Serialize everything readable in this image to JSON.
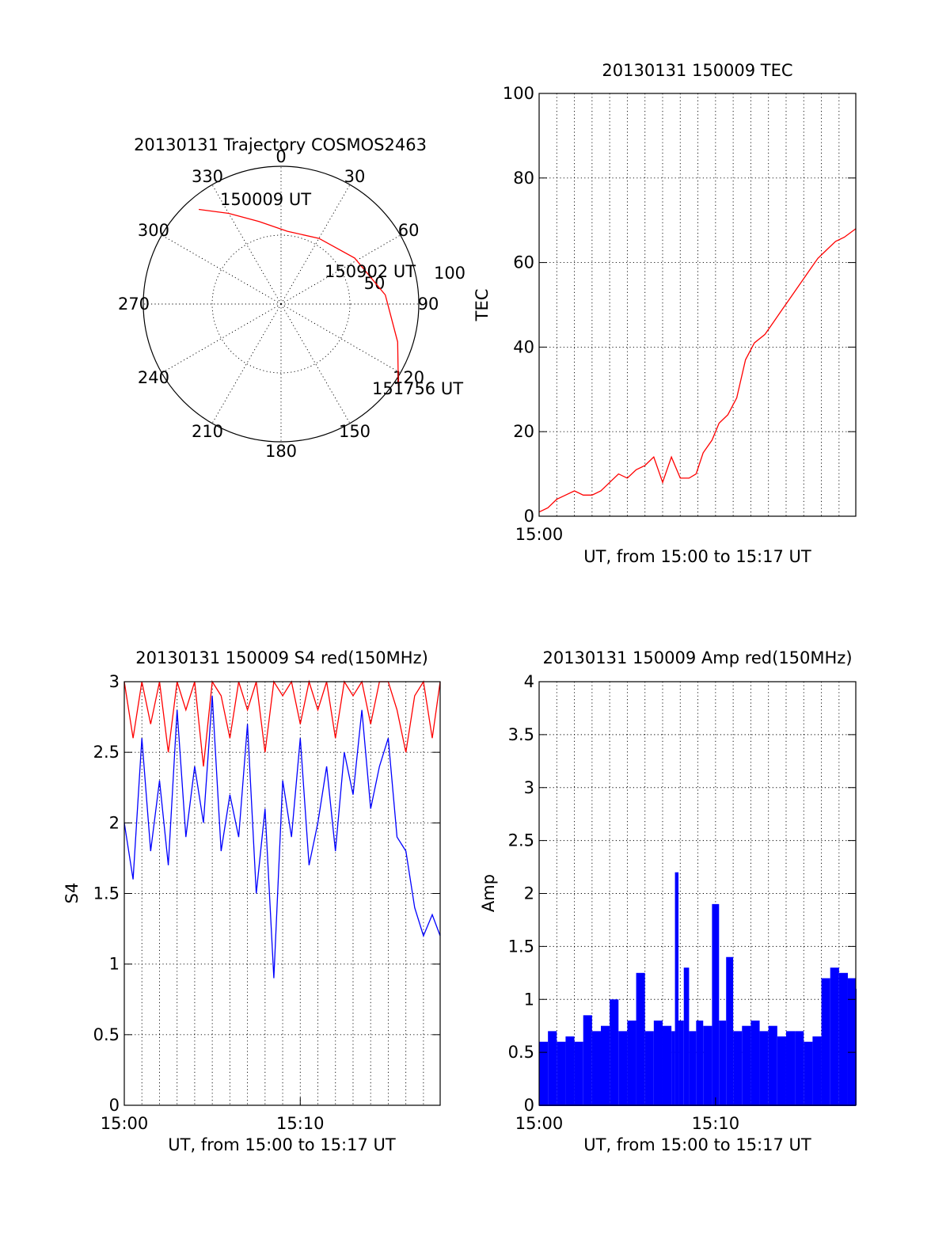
{
  "chart_data": [
    {
      "type": "polar",
      "title": "20130131 Trajectory COSMOS2463",
      "azimuth_labels": [
        "0",
        "30",
        "60",
        "90",
        "120",
        "150",
        "180",
        "210",
        "240",
        "270",
        "300",
        "330"
      ],
      "radial_tick_labels": [
        "50",
        "100"
      ],
      "rlim": [
        0,
        100
      ],
      "grid": true,
      "series": [
        {
          "color": "#ff0000",
          "points": [
            {
              "az": 319,
              "r": 91
            },
            {
              "az": 330,
              "r": 76
            },
            {
              "az": 345,
              "r": 62
            },
            {
              "az": 5,
              "r": 53
            },
            {
              "az": 30,
              "r": 55
            },
            {
              "az": 58,
              "r": 63
            },
            {
              "az": 85,
              "r": 76
            },
            {
              "az": 108,
              "r": 89
            },
            {
              "az": 125,
              "r": 104
            }
          ]
        }
      ],
      "annotations": [
        "150009 UT",
        "150902 UT",
        "151756 UT"
      ]
    },
    {
      "type": "line",
      "title": "20130131 150009 TEC",
      "xlabel": "UT, from 15:00 to 15:17 UT",
      "ylabel": "TEC",
      "xlim": [
        0,
        17.95
      ],
      "ylim": [
        0,
        100
      ],
      "xtick_labels": [
        "15:00"
      ],
      "ytick_labels": [
        "0",
        "20",
        "40",
        "60",
        "80",
        "100"
      ],
      "grid": true,
      "series": [
        {
          "color": "#ff0000",
          "x": [
            0.0,
            0.5,
            1.0,
            1.5,
            2.0,
            2.5,
            3.0,
            3.5,
            4.0,
            4.5,
            5.0,
            5.5,
            6.0,
            6.5,
            7.0,
            7.5,
            8.0,
            8.5,
            8.9,
            9.3,
            9.8,
            10.2,
            10.7,
            11.2,
            11.7,
            12.2,
            12.8,
            13.3,
            13.8,
            14.3,
            14.8,
            15.3,
            15.8,
            16.3,
            16.8,
            17.3,
            17.95
          ],
          "y": [
            1,
            2,
            4,
            5,
            6,
            5,
            5,
            6,
            8,
            10,
            9,
            11,
            12,
            14,
            8,
            14,
            9,
            9,
            10,
            15,
            18,
            22,
            24,
            28,
            37,
            41,
            43,
            46,
            49,
            52,
            55,
            58,
            61,
            63,
            65,
            66,
            68
          ]
        }
      ]
    },
    {
      "type": "line",
      "title": "20130131 150009 S4 red(150MHz)",
      "xlabel": "UT, from 15:00 to 15:17 UT",
      "ylabel": "S4",
      "xlim": [
        0,
        17.95
      ],
      "ylim": [
        0,
        3
      ],
      "xtick_labels": [
        "15:00",
        "15:10"
      ],
      "ytick_labels": [
        "0",
        "0.5",
        "1",
        "1.5",
        "2",
        "2.5",
        "3"
      ],
      "grid": true,
      "series": [
        {
          "color": "#ff0000",
          "x": [
            0.0,
            0.5,
            1.0,
            1.5,
            2.0,
            2.5,
            3.0,
            3.5,
            4.0,
            4.5,
            5.0,
            5.5,
            6.0,
            6.5,
            7.0,
            7.5,
            8.0,
            8.5,
            9.0,
            9.5,
            10.0,
            10.5,
            11.0,
            11.5,
            12.0,
            12.5,
            13.0,
            13.5,
            14.0,
            14.5,
            15.0,
            15.5,
            16.0,
            16.5,
            17.0,
            17.5,
            17.95
          ],
          "y": [
            3.0,
            2.6,
            3.0,
            2.7,
            3.0,
            2.5,
            3.0,
            2.8,
            3.0,
            2.4,
            3.0,
            2.9,
            2.6,
            3.0,
            2.8,
            3.0,
            2.5,
            3.0,
            2.9,
            3.0,
            2.7,
            3.0,
            2.8,
            3.0,
            2.6,
            3.0,
            2.9,
            3.0,
            2.7,
            3.0,
            3.0,
            2.8,
            2.5,
            2.9,
            3.0,
            2.6,
            3.0
          ]
        },
        {
          "color": "#0000ff",
          "x": [
            0.0,
            0.5,
            1.0,
            1.5,
            2.0,
            2.5,
            3.0,
            3.5,
            4.0,
            4.5,
            5.0,
            5.5,
            6.0,
            6.5,
            7.0,
            7.5,
            8.0,
            8.5,
            9.0,
            9.5,
            10.0,
            10.5,
            11.0,
            11.5,
            12.0,
            12.5,
            13.0,
            13.5,
            14.0,
            14.5,
            15.0,
            15.5,
            16.0,
            16.5,
            17.0,
            17.5,
            17.95
          ],
          "y": [
            2.0,
            1.6,
            2.6,
            1.8,
            2.3,
            1.7,
            2.8,
            1.9,
            2.4,
            2.0,
            2.9,
            1.8,
            2.2,
            1.9,
            2.7,
            1.5,
            2.1,
            0.9,
            2.3,
            1.9,
            2.6,
            1.7,
            2.0,
            2.4,
            1.8,
            2.5,
            2.2,
            2.8,
            2.1,
            2.4,
            2.6,
            1.9,
            1.8,
            1.4,
            1.2,
            1.35,
            1.2
          ]
        }
      ]
    },
    {
      "type": "bar",
      "title": "20130131 150009 Amp red(150MHz)",
      "xlabel": "UT, from 15:00 to 15:17 UT",
      "ylabel": "Amp",
      "xlim": [
        0,
        17.95
      ],
      "ylim": [
        0,
        4
      ],
      "xtick_labels": [
        "15:00",
        "15:10"
      ],
      "ytick_labels": [
        "0",
        "0.5",
        "1",
        "1.5",
        "2",
        "2.5",
        "3",
        "3.5",
        "4"
      ],
      "grid": true,
      "series": [
        {
          "color": "#0000ff",
          "x": [
            0.0,
            0.5,
            1.0,
            1.5,
            2.0,
            2.5,
            3.0,
            3.5,
            4.0,
            4.5,
            5.0,
            5.5,
            6.0,
            6.5,
            7.0,
            7.5,
            7.7,
            7.9,
            8.2,
            8.5,
            8.9,
            9.3,
            9.8,
            10.2,
            10.6,
            11.0,
            11.5,
            12.0,
            12.5,
            13.0,
            13.5,
            14.0,
            14.5,
            15.0,
            15.5,
            16.0,
            16.5,
            17.0,
            17.5,
            17.95
          ],
          "y": [
            0.6,
            0.7,
            0.6,
            0.65,
            0.6,
            0.85,
            0.7,
            0.75,
            1.0,
            0.7,
            0.8,
            1.25,
            0.7,
            0.8,
            0.75,
            0.7,
            2.2,
            0.8,
            1.3,
            0.7,
            0.8,
            0.75,
            1.9,
            0.8,
            1.4,
            0.7,
            0.75,
            0.8,
            0.7,
            0.75,
            0.65,
            0.7,
            0.7,
            0.6,
            0.65,
            1.2,
            1.3,
            1.25,
            1.2,
            1.1
          ]
        }
      ]
    }
  ]
}
